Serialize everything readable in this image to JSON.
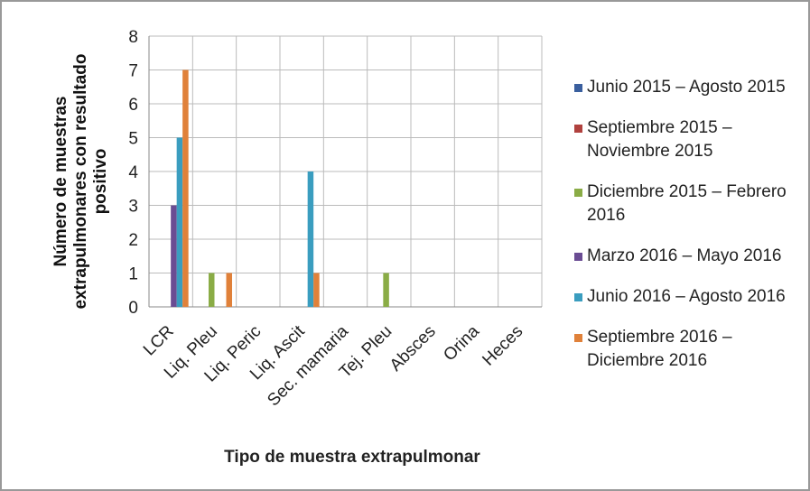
{
  "chart_data": {
    "type": "bar",
    "y_label": "Número de muestras extrapulmonares con resultado positivo",
    "x_label": "Tipo de muestra extrapulmonar",
    "categories": [
      "LCR",
      "Liq. Pleu",
      "Liq. Peric",
      "Liq. Ascit",
      "Sec. mamaria",
      "Tej. Pleu",
      "Absces",
      "Orina",
      "Heces"
    ],
    "series": [
      {
        "name": "Junio 2015 – Agosto 2015",
        "color": "#3a5f9e",
        "values": [
          0,
          0,
          0,
          0,
          0,
          0,
          0,
          0,
          0
        ]
      },
      {
        "name": "Septiembre 2015 – Noviembre 2015",
        "color": "#b0413e",
        "values": [
          0,
          0,
          0,
          0,
          0,
          0,
          0,
          0,
          0
        ]
      },
      {
        "name": "Diciembre 2015 – Febrero 2016",
        "color": "#8aac46",
        "values": [
          0,
          1,
          0,
          0,
          0,
          1,
          0,
          0,
          0
        ]
      },
      {
        "name": "Marzo 2016 – Mayo 2016",
        "color": "#6a4c93",
        "values": [
          3,
          0,
          0,
          0,
          0,
          0,
          0,
          0,
          0
        ]
      },
      {
        "name": "Junio 2016 – Agosto 2016",
        "color": "#3a9dbf",
        "values": [
          5,
          0,
          0,
          4,
          0,
          0,
          0,
          0,
          0
        ]
      },
      {
        "name": "Septiembre 2016 – Diciembre 2016",
        "color": "#e0813a",
        "values": [
          7,
          1,
          0,
          1,
          0,
          0,
          0,
          0,
          0
        ]
      }
    ],
    "ylim": [
      0,
      8
    ],
    "yticks": [
      0,
      1,
      2,
      3,
      4,
      5,
      6,
      7,
      8
    ],
    "grid": true,
    "legend": "right"
  }
}
